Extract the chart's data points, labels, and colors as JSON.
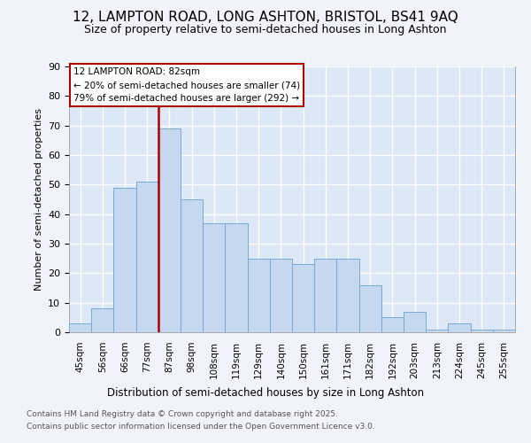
{
  "title": "12, LAMPTON ROAD, LONG ASHTON, BRISTOL, BS41 9AQ",
  "subtitle": "Size of property relative to semi-detached houses in Long Ashton",
  "xlabel": "Distribution of semi-detached houses by size in Long Ashton",
  "ylabel": "Number of semi-detached properties",
  "bar_values": [
    3,
    8,
    49,
    51,
    69,
    45,
    37,
    37,
    25,
    25,
    23,
    25,
    25,
    16,
    5,
    7,
    1,
    3,
    1,
    1
  ],
  "bin_labels": [
    "45sqm",
    "56sqm",
    "66sqm",
    "77sqm",
    "87sqm",
    "98sqm",
    "108sqm",
    "119sqm",
    "129sqm",
    "140sqm",
    "150sqm",
    "161sqm",
    "171sqm",
    "182sqm",
    "192sqm",
    "203sqm",
    "213sqm",
    "224sqm",
    "245sqm",
    "255sqm"
  ],
  "bar_color": "#c5d8ef",
  "bar_edge_color": "#7aaad0",
  "bg_color": "#dce8f5",
  "grid_color": "#ffffff",
  "red_line_x": 4,
  "annotation_line1": "12 LAMPTON ROAD: 82sqm",
  "annotation_line2": "← 20% of semi-detached houses are smaller (74)",
  "annotation_line3": "79% of semi-detached houses are larger (292) →",
  "annotation_box_facecolor": "#ffffff",
  "annotation_box_edgecolor": "#aa0000",
  "footer1": "Contains HM Land Registry data © Crown copyright and database right 2025.",
  "footer2": "Contains public sector information licensed under the Open Government Licence v3.0.",
  "ylim_max": 90,
  "yticks": [
    0,
    10,
    20,
    30,
    40,
    50,
    60,
    70,
    80,
    90
  ],
  "fig_bg_color": "#f0f4fa",
  "title_fontsize": 11,
  "subtitle_fontsize": 9
}
